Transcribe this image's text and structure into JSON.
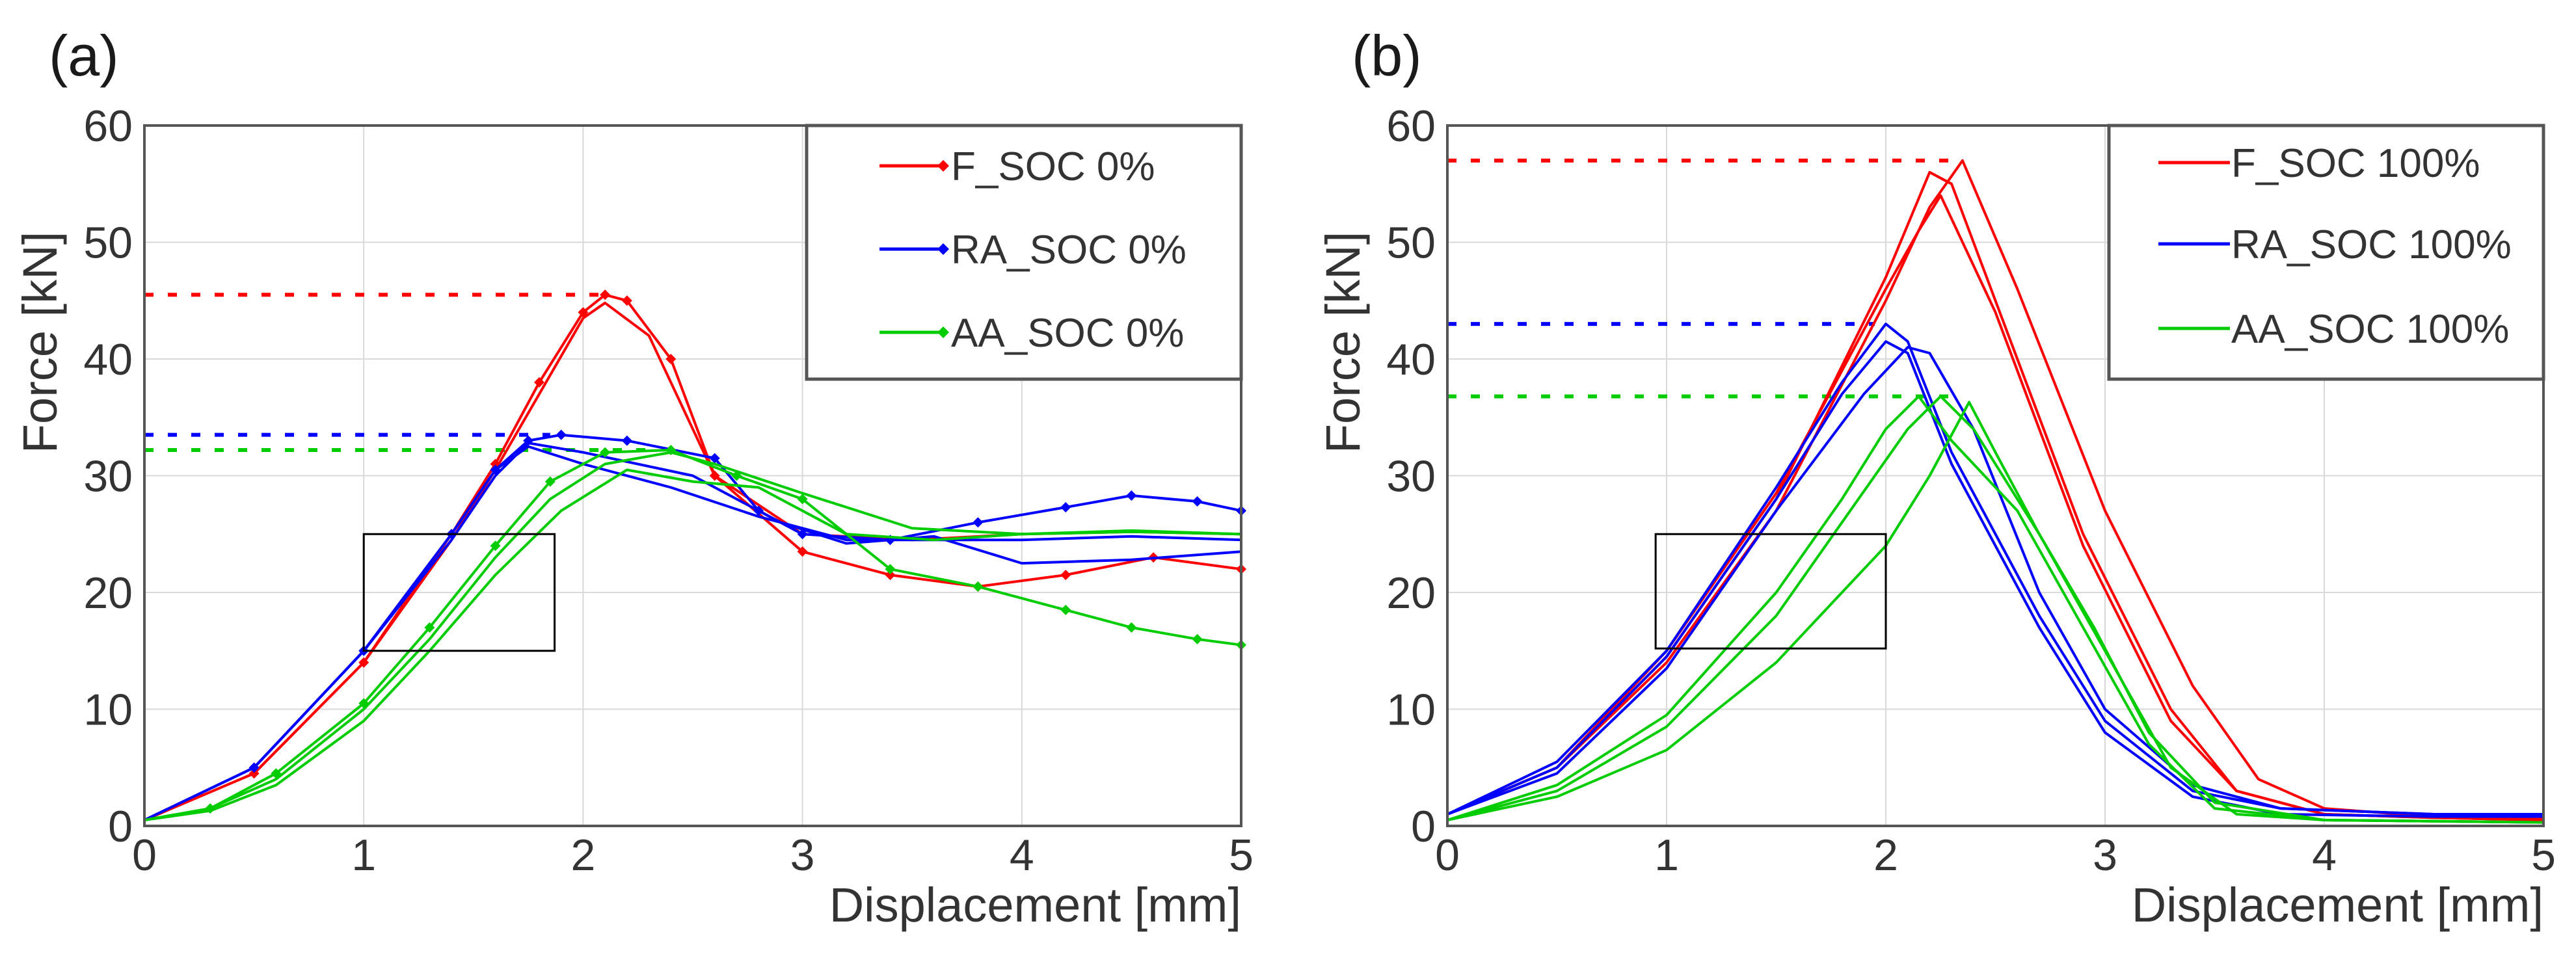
{
  "chart_data": [
    {
      "type": "line",
      "panel_label": "(a)",
      "xlabel": "Displacement [mm]",
      "ylabel": "Force [kN]",
      "xlim": [
        0,
        5
      ],
      "ylim": [
        0,
        60
      ],
      "xticks": [
        "0",
        "1",
        "2",
        "3",
        "4",
        "5"
      ],
      "yticks": [
        "0",
        "10",
        "20",
        "30",
        "40",
        "50",
        "60"
      ],
      "grid": true,
      "legend_position": "top-right",
      "legend": [
        {
          "name": "F_SOC 0%",
          "color": "#ff0000",
          "marker": "diamond"
        },
        {
          "name": "RA_SOC 0%",
          "color": "#0000ff",
          "marker": "diamond"
        },
        {
          "name": "AA_SOC 0%",
          "color": "#00cc00",
          "marker": "diamond"
        }
      ],
      "peak_lines": [
        {
          "color": "#ff0000",
          "y": 45.5,
          "x_end": 2.1
        },
        {
          "color": "#0000ff",
          "y": 33.5,
          "x_end": 1.85
        },
        {
          "color": "#00cc00",
          "y": 32.2,
          "x_end": 2.3
        }
      ],
      "zoom_region": {
        "x": [
          1.0,
          1.87
        ],
        "y": [
          15,
          25
        ]
      },
      "series": [
        {
          "name": "F_SOC 0%",
          "color": "#ff0000",
          "markers": true,
          "x": [
            0,
            0.5,
            1.0,
            1.4,
            1.6,
            1.8,
            2.0,
            2.1,
            2.2,
            2.4,
            2.6,
            3.0,
            3.4,
            3.8,
            4.2,
            4.6,
            5.0
          ],
          "y": [
            0.5,
            4.5,
            14,
            25,
            31,
            38,
            44,
            45.5,
            45,
            40,
            30,
            23.5,
            21.5,
            20.5,
            21.5,
            23,
            22
          ]
        },
        {
          "name": "F_SOC 0% (2)",
          "color": "#ff0000",
          "markers": false,
          "x": [
            0,
            0.5,
            1.0,
            1.4,
            1.6,
            1.8,
            2.0,
            2.1,
            2.3,
            2.6,
            3.0,
            3.5,
            4.0,
            4.5,
            5.0
          ],
          "y": [
            0.5,
            4.5,
            14,
            24.5,
            30.5,
            37,
            43.5,
            44.8,
            42,
            30,
            25,
            24.5,
            25,
            25.2,
            25
          ]
        },
        {
          "name": "RA_SOC 0%",
          "color": "#0000ff",
          "markers": true,
          "x": [
            0,
            0.5,
            1.0,
            1.4,
            1.6,
            1.75,
            1.9,
            2.2,
            2.6,
            2.8,
            3.0,
            3.4,
            3.8,
            4.2,
            4.5,
            4.8,
            5.0
          ],
          "y": [
            0.5,
            5,
            15,
            25,
            30.5,
            33,
            33.5,
            33,
            31.5,
            27,
            25,
            24.5,
            26,
            27.3,
            28.3,
            27.8,
            27
          ]
        },
        {
          "name": "RA_SOC 0% (2)",
          "color": "#0000ff",
          "markers": false,
          "x": [
            0,
            0.5,
            1.0,
            1.4,
            1.6,
            1.75,
            2.0,
            2.4,
            2.8,
            3.2,
            3.6,
            4.0,
            4.5,
            5.0
          ],
          "y": [
            0.5,
            5,
            15,
            25,
            30.5,
            32.5,
            31,
            29,
            26.5,
            24.5,
            24.5,
            24.5,
            24.8,
            24.5
          ]
        },
        {
          "name": "RA_SOC 0% (3)",
          "color": "#0000ff",
          "markers": false,
          "x": [
            0,
            0.5,
            1.0,
            1.4,
            1.6,
            1.75,
            2.0,
            2.5,
            2.9,
            3.2,
            3.6,
            4.0,
            4.5,
            5.0
          ],
          "y": [
            0.5,
            5,
            15,
            24.5,
            30,
            32.8,
            32,
            30,
            26,
            24.2,
            24.8,
            22.5,
            22.8,
            23.5
          ]
        },
        {
          "name": "AA_SOC 0%",
          "color": "#00cc00",
          "markers": true,
          "x": [
            0,
            0.3,
            0.6,
            1.0,
            1.3,
            1.6,
            1.85,
            2.1,
            2.4,
            2.7,
            3.0,
            3.4,
            3.8,
            4.2,
            4.5,
            4.8,
            5.0
          ],
          "y": [
            0.5,
            1.5,
            4.5,
            10.5,
            17,
            24,
            29.5,
            32,
            32.2,
            30,
            28,
            22,
            20.5,
            18.5,
            17,
            16,
            15.5
          ]
        },
        {
          "name": "AA_SOC 0% (2)",
          "color": "#00cc00",
          "markers": false,
          "x": [
            0,
            0.3,
            0.6,
            1.0,
            1.3,
            1.6,
            1.85,
            2.1,
            2.4,
            2.6,
            3.0,
            3.5,
            4.0,
            4.5,
            5.0
          ],
          "y": [
            0.5,
            1.5,
            4,
            10,
            16,
            23,
            28,
            31,
            32,
            31,
            28.5,
            25.5,
            25,
            25.3,
            25
          ]
        },
        {
          "name": "AA_SOC 0% (3)",
          "color": "#00cc00",
          "markers": false,
          "x": [
            0,
            0.3,
            0.6,
            1.0,
            1.3,
            1.6,
            1.9,
            2.2,
            2.5,
            2.8,
            3.2,
            3.6,
            4.0,
            4.5,
            5.0
          ],
          "y": [
            0.5,
            1.3,
            3.5,
            9,
            15,
            21.5,
            27,
            30.5,
            29.5,
            29,
            25,
            24.5,
            25,
            25.2,
            25
          ]
        }
      ]
    },
    {
      "type": "line",
      "panel_label": "(b)",
      "xlabel": "Displacement [mm]",
      "ylabel": "Force [kN]",
      "xlim": [
        0,
        5
      ],
      "ylim": [
        0,
        60
      ],
      "xticks": [
        "0",
        "1",
        "2",
        "3",
        "4",
        "5"
      ],
      "yticks": [
        "0",
        "10",
        "20",
        "30",
        "40",
        "50",
        "60"
      ],
      "grid": true,
      "legend_position": "top-right",
      "legend": [
        {
          "name": "F_SOC 100%",
          "color": "#ff0000",
          "marker": "none"
        },
        {
          "name": "RA_SOC 100%",
          "color": "#0000ff",
          "marker": "none"
        },
        {
          "name": "AA_SOC 100%",
          "color": "#00cc00",
          "marker": "none"
        }
      ],
      "peak_lines": [
        {
          "color": "#ff0000",
          "y": 57,
          "x_end": 2.35
        },
        {
          "color": "#0000ff",
          "y": 43,
          "x_end": 1.95
        },
        {
          "color": "#00cc00",
          "y": 36.8,
          "x_end": 2.3
        }
      ],
      "zoom_region": {
        "x": [
          0.95,
          2.0
        ],
        "y": [
          15.2,
          25
        ]
      },
      "series": [
        {
          "name": "F_SOC 100%",
          "color": "#ff0000",
          "markers": false,
          "x": [
            0,
            0.5,
            1.0,
            1.5,
            2.0,
            2.2,
            2.35,
            2.6,
            3.0,
            3.4,
            3.7,
            4.0,
            4.5,
            5.0
          ],
          "y": [
            1,
            5,
            14,
            27,
            45,
            53,
            57,
            46,
            27,
            12,
            4,
            1.5,
            0.8,
            0.6
          ]
        },
        {
          "name": "F_SOC 100% (2)",
          "color": "#ff0000",
          "markers": false,
          "x": [
            0,
            0.5,
            1.0,
            1.5,
            2.0,
            2.2,
            2.3,
            2.5,
            2.9,
            3.3,
            3.6,
            4.0,
            4.5,
            5.0
          ],
          "y": [
            1,
            5,
            14.5,
            28,
            47,
            56,
            55,
            45,
            25,
            10,
            3,
            1,
            0.7,
            0.5
          ]
        },
        {
          "name": "F_SOC 100% (3)",
          "color": "#ff0000",
          "markers": false,
          "x": [
            0,
            0.5,
            1.0,
            1.5,
            2.0,
            2.15,
            2.25,
            2.5,
            2.9,
            3.3,
            3.6,
            4.0,
            4.5,
            5.0
          ],
          "y": [
            1,
            5,
            15,
            28.5,
            46,
            51,
            54,
            44,
            24,
            9,
            3,
            1,
            0.7,
            0.5
          ]
        },
        {
          "name": "RA_SOC 100%",
          "color": "#0000ff",
          "markers": false,
          "x": [
            0,
            0.5,
            1.0,
            1.5,
            1.8,
            2.0,
            2.1,
            2.3,
            2.7,
            3.0,
            3.4,
            3.8,
            4.5,
            5.0
          ],
          "y": [
            1,
            5.5,
            15,
            29,
            38,
            43,
            41.5,
            32,
            18,
            9,
            3,
            1.5,
            1,
            1
          ]
        },
        {
          "name": "RA_SOC 100% (2)",
          "color": "#0000ff",
          "markers": false,
          "x": [
            0,
            0.5,
            1.0,
            1.5,
            1.8,
            2.0,
            2.1,
            2.3,
            2.7,
            3.0,
            3.4,
            3.8,
            4.5,
            5.0
          ],
          "y": [
            1,
            5,
            14.5,
            28,
            37,
            41.5,
            40.5,
            31,
            17,
            8,
            2.5,
            1,
            0.8,
            0.8
          ]
        },
        {
          "name": "RA_SOC 100% (3)",
          "color": "#0000ff",
          "markers": false,
          "x": [
            0,
            0.5,
            1.0,
            1.5,
            1.9,
            2.1,
            2.2,
            2.4,
            2.7,
            3.0,
            3.4,
            3.8,
            4.5,
            5.0
          ],
          "y": [
            1,
            4.5,
            13.5,
            27,
            37,
            41,
            40.5,
            34,
            20,
            10,
            3.5,
            1.5,
            1,
            0.8
          ]
        },
        {
          "name": "AA_SOC 100%",
          "color": "#00cc00",
          "markers": false,
          "x": [
            0,
            0.5,
            1.0,
            1.5,
            1.8,
            2.0,
            2.15,
            2.3,
            2.6,
            2.9,
            3.2,
            3.5,
            4.0,
            5.0
          ],
          "y": [
            0.5,
            3.5,
            9.5,
            20,
            28,
            34,
            36.8,
            33,
            27,
            17,
            7,
            1.5,
            0.5,
            0.3
          ]
        },
        {
          "name": "AA_SOC 100% (2)",
          "color": "#00cc00",
          "markers": false,
          "x": [
            0,
            0.5,
            1.0,
            1.5,
            1.8,
            2.1,
            2.25,
            2.4,
            2.7,
            3.0,
            3.3,
            3.6,
            4.0,
            5.0
          ],
          "y": [
            0.5,
            3,
            8.5,
            18,
            26,
            34,
            36.8,
            34,
            25,
            15,
            5,
            1,
            0.5,
            0.3
          ]
        },
        {
          "name": "AA_SOC 100% (3)",
          "color": "#00cc00",
          "markers": false,
          "x": [
            0,
            0.5,
            1.0,
            1.5,
            2.0,
            2.2,
            2.38,
            2.5,
            2.7,
            2.95,
            3.2,
            3.5,
            4.0,
            5.0
          ],
          "y": [
            0.5,
            2.5,
            6.5,
            14,
            24,
            30,
            36.3,
            32,
            25,
            17,
            8,
            2,
            0.5,
            0.3
          ]
        }
      ]
    }
  ]
}
